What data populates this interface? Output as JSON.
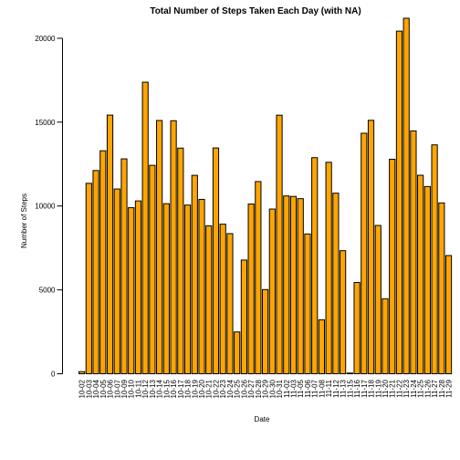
{
  "chart_data": {
    "type": "bar",
    "title": "Total Number of Steps Taken Each Day (with NA)",
    "xlabel": "Date",
    "ylabel": "Number of Steps",
    "ylim": [
      0,
      21194
    ],
    "yticks": [
      0,
      5000,
      10000,
      15000,
      20000
    ],
    "bar_color": "#FFA500",
    "categories": [
      "10-02",
      "10-03",
      "10-04",
      "10-05",
      "10-06",
      "10-07",
      "10-09",
      "10-10",
      "10-11",
      "10-12",
      "10-13",
      "10-14",
      "10-15",
      "10-16",
      "10-17",
      "10-18",
      "10-19",
      "10-20",
      "10-21",
      "10-22",
      "10-23",
      "10-24",
      "10-25",
      "10-26",
      "10-27",
      "10-28",
      "10-29",
      "10-30",
      "10-31",
      "11-02",
      "11-03",
      "11-05",
      "11-06",
      "11-07",
      "11-08",
      "11-11",
      "11-12",
      "11-13",
      "11-15",
      "11-16",
      "11-17",
      "11-18",
      "11-19",
      "11-20",
      "11-21",
      "11-22",
      "11-23",
      "11-24",
      "11-25",
      "11-26",
      "11-27",
      "11-28",
      "11-29"
    ],
    "values": [
      126,
      11352,
      12116,
      13294,
      15420,
      11015,
      12811,
      9900,
      10304,
      17382,
      12426,
      15098,
      10139,
      15084,
      13452,
      10056,
      11829,
      10395,
      8821,
      13460,
      8918,
      8355,
      2492,
      6778,
      10119,
      11458,
      5018,
      9819,
      15414,
      10600,
      10571,
      10439,
      8334,
      12883,
      3219,
      12608,
      10765,
      7336,
      41,
      5441,
      14339,
      15110,
      8841,
      4472,
      12787,
      20427,
      21194,
      14478,
      11834,
      11162,
      13646,
      10183,
      7047
    ]
  }
}
